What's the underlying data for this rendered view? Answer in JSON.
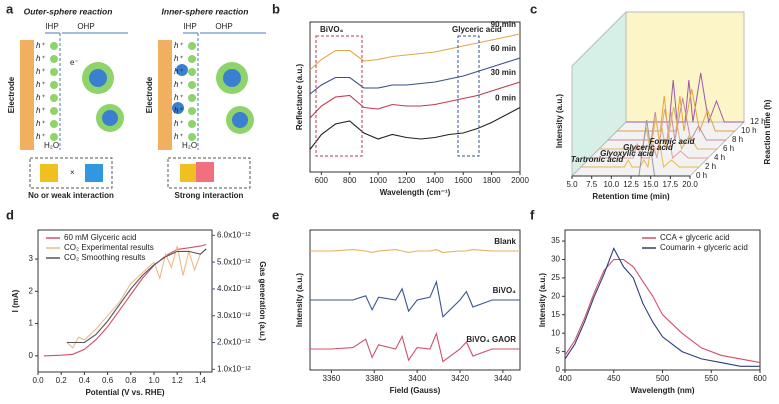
{
  "diagram": {
    "panel": "a",
    "hole": "h⁺",
    "outer": {
      "title": "Outer-sphere reaction",
      "electrode": "Electrode",
      "ihp": "IHP",
      "ohp": "OHP",
      "electron": "e⁻",
      "water": "H₂O",
      "caption": "No or weak interaction"
    },
    "inner": {
      "title": "Inner-sphere reaction",
      "electrode": "Electrode",
      "ihp": "IHP",
      "ohp": "OHP",
      "electron": "e⁻",
      "water": "H₂O",
      "caption": "Strong interaction"
    }
  },
  "chart_data": [
    {
      "panel": "b",
      "type": "line",
      "xlabel": "Wavelength (cm⁻¹)",
      "ylabel": "Reflectance (a.u.)",
      "xlim": [
        520,
        2000
      ],
      "xticks": [
        600,
        800,
        1000,
        1200,
        1400,
        1600,
        1800,
        2000
      ],
      "ylim": [
        0,
        10
      ],
      "legend": "inline",
      "annotations": [
        "BiVO₄",
        "Glyceric acid"
      ],
      "x": [
        520,
        600,
        700,
        800,
        900,
        1000,
        1100,
        1200,
        1300,
        1400,
        1500,
        1600,
        1700,
        1800,
        1900,
        2000
      ],
      "series": [
        {
          "name": "0 min",
          "color": "#222222",
          "values": [
            1.5,
            2.5,
            3.2,
            3.4,
            2.6,
            2.2,
            2.5,
            2.3,
            2.2,
            2.3,
            2.5,
            2.6,
            2.9,
            3.3,
            3.8,
            4.3
          ]
        },
        {
          "name": "30 min",
          "color": "#c0394a",
          "values": [
            3.6,
            4.4,
            5.0,
            5.1,
            4.3,
            4.2,
            4.5,
            4.4,
            4.4,
            4.5,
            4.7,
            4.9,
            5.1,
            5.4,
            5.7,
            6.0
          ]
        },
        {
          "name": "60 min",
          "color": "#3a4f8a",
          "values": [
            5.2,
            5.8,
            6.3,
            6.3,
            5.6,
            5.6,
            5.8,
            5.8,
            5.9,
            6.0,
            6.2,
            6.4,
            6.7,
            7.0,
            7.3,
            7.6
          ]
        },
        {
          "name": "90 min",
          "color": "#e0a84a",
          "values": [
            6.8,
            7.5,
            8.1,
            8.1,
            7.4,
            7.5,
            7.7,
            7.8,
            7.9,
            8.0,
            8.2,
            8.4,
            8.6,
            8.8,
            9.0,
            9.2
          ]
        }
      ]
    },
    {
      "panel": "c",
      "type": "line3d",
      "xlabel": "Retention time (min)",
      "ylabel": "Intensity (a.u.)",
      "zlabel": "Reaction time (h)",
      "xlim": [
        5,
        20
      ],
      "xticks": [
        {
          "value": 5,
          "label": "5.0"
        },
        7.5,
        {
          "value": 10,
          "label": "10.0"
        },
        12.5,
        {
          "value": 15,
          "label": "15.0"
        },
        17.5,
        {
          "value": 20,
          "label": "20.0"
        }
      ],
      "ylim": [
        0,
        10
      ],
      "annotations": [
        "Tartronic acid",
        "Glyoxylic acid",
        "Glyceric acid",
        "Formic acid"
      ],
      "x": [
        5,
        9,
        10.5,
        11,
        11.5,
        12.5,
        13,
        13.5,
        14.5,
        15.5,
        16.5,
        17.5,
        20
      ],
      "series": [
        {
          "name": "0 h",
          "color": "#999999",
          "values": [
            0,
            0,
            0,
            0,
            0,
            0,
            0,
            0,
            8,
            0,
            0,
            0,
            0
          ]
        },
        {
          "name": "2 h",
          "color": "#e8b94a",
          "values": [
            0,
            0,
            0,
            1,
            0,
            0,
            1,
            0,
            7,
            0,
            1,
            0,
            0
          ]
        },
        {
          "name": "4 h",
          "color": "#e0a0a0",
          "values": [
            0,
            0,
            0,
            2,
            0,
            0,
            2,
            0,
            7,
            0,
            1,
            0,
            0
          ]
        },
        {
          "name": "6 h",
          "color": "#d9b66a",
          "values": [
            0,
            0,
            0,
            3,
            0,
            0,
            3,
            0,
            6,
            0,
            2,
            0,
            0
          ]
        },
        {
          "name": "8 h",
          "color": "#c88aa0",
          "values": [
            0,
            0,
            0,
            4,
            0,
            0,
            4,
            0,
            6,
            0,
            2,
            0,
            0
          ]
        },
        {
          "name": "10 h",
          "color": "#e6a33c",
          "values": [
            0,
            0,
            0,
            5,
            0,
            0,
            5,
            0,
            6,
            0,
            3,
            0,
            0
          ]
        },
        {
          "name": "12 h",
          "color": "#9a5aa8",
          "values": [
            0,
            0,
            0,
            6,
            0,
            0,
            6,
            0,
            7,
            0,
            3,
            0,
            0
          ]
        }
      ]
    },
    {
      "panel": "d",
      "type": "line",
      "xlabel": "Potential (V vs. RHE)",
      "ylabel": "I (mA)",
      "y2label": "Gas generation (a.u.)",
      "xlim": [
        0,
        1.5
      ],
      "xticks": [
        {
          "value": 0,
          "label": "0.0"
        },
        0.2,
        0.4,
        0.6,
        0.8,
        {
          "value": 1,
          "label": "1.0"
        },
        1.2,
        1.4
      ],
      "ylim": [
        -0.5,
        3.9
      ],
      "yticks": [
        0,
        1,
        2,
        3
      ],
      "legend": "upper left",
      "y2lim": [
        9e-13,
        6.2e-12
      ],
      "y2ticks": [
        {
          "value": 1e-12,
          "label": "1.0x10⁻¹²"
        },
        {
          "value": 2e-12,
          "label": "2.0x10⁻¹²"
        },
        {
          "value": 3e-12,
          "label": "3.0x10⁻¹²"
        },
        {
          "value": 4e-12,
          "label": "4.0x10⁻¹²"
        },
        {
          "value": 5e-12,
          "label": "5.0x10⁻¹²"
        },
        {
          "value": 6e-12,
          "label": "6.0x10⁻¹²"
        }
      ],
      "series": [
        {
          "name": "60 mM  Glyceric acid",
          "color": "#d0506a",
          "x": [
            0.05,
            0.2,
            0.3,
            0.4,
            0.5,
            0.6,
            0.7,
            0.8,
            0.9,
            1.0,
            1.1,
            1.2,
            1.3,
            1.4,
            1.45
          ],
          "values": [
            0,
            0.02,
            0.05,
            0.2,
            0.5,
            0.9,
            1.4,
            1.9,
            2.4,
            2.8,
            3.1,
            3.3,
            3.35,
            3.4,
            3.45
          ]
        },
        {
          "name": "CO₂ Experimental results",
          "color": "#f0b88a",
          "axis": "y2",
          "x": [
            0.25,
            0.3,
            0.35,
            0.4,
            0.5,
            0.6,
            0.7,
            0.8,
            0.9,
            1.0,
            1.05,
            1.1,
            1.15,
            1.2,
            1.25,
            1.3,
            1.35,
            1.4,
            1.45
          ],
          "values": [
            2e-12,
            1.8e-12,
            2.2e-12,
            2.1e-12,
            2.5e-12,
            3e-12,
            3.5e-12,
            4.2e-12,
            4.6e-12,
            5e-12,
            4.4e-12,
            5.3e-12,
            4.8e-12,
            5.6e-12,
            4.5e-12,
            5.4e-12,
            4.7e-12,
            5.3e-12,
            5.5e-12
          ]
        },
        {
          "name": "CO₂ Smoothing results",
          "color": "#555555",
          "axis": "y2",
          "x": [
            0.25,
            0.4,
            0.5,
            0.6,
            0.7,
            0.8,
            0.9,
            1.0,
            1.1,
            1.2,
            1.3,
            1.4,
            1.45
          ],
          "values": [
            2e-12,
            2e-12,
            2.3e-12,
            2.8e-12,
            3.4e-12,
            4e-12,
            4.5e-12,
            4.9e-12,
            5.2e-12,
            5.4e-12,
            5.4e-12,
            5.3e-12,
            5.5e-12
          ]
        }
      ]
    },
    {
      "panel": "e",
      "type": "line",
      "xlabel": "Field (Gauss)",
      "ylabel": "Intensity (a.u.)",
      "xlim": [
        3350,
        3448
      ],
      "xticks": [
        3360,
        3380,
        3400,
        3420,
        3440
      ],
      "ylim": [
        0,
        10
      ],
      "legend": "inline",
      "x": [
        3350,
        3360,
        3370,
        3376,
        3379,
        3382,
        3390,
        3393,
        3396,
        3400,
        3406,
        3409,
        3412,
        3420,
        3423,
        3426,
        3435,
        3448
      ],
      "series": [
        {
          "name": "Blank",
          "color": "#e6b060",
          "values": [
            8.5,
            8.5,
            8.6,
            8.5,
            8.4,
            8.5,
            8.6,
            8.5,
            8.4,
            8.5,
            8.5,
            8.6,
            8.4,
            8.5,
            8.5,
            8.6,
            8.5,
            8.5
          ]
        },
        {
          "name": "BiVO₄",
          "color": "#3a5590",
          "values": [
            5,
            5,
            5,
            5.3,
            4.3,
            5.2,
            5,
            5.8,
            4.2,
            5,
            5.2,
            6.3,
            3.8,
            5,
            5.6,
            4.5,
            5,
            5
          ]
        },
        {
          "name": "BiVO₄ GAOR",
          "color": "#d0506a",
          "values": [
            1.5,
            1.5,
            1.6,
            2.2,
            0.9,
            1.8,
            1.5,
            2.4,
            0.7,
            1.6,
            1.5,
            2.6,
            0.6,
            1.5,
            2.0,
            1.0,
            1.5,
            1.5
          ]
        }
      ]
    },
    {
      "panel": "f",
      "type": "line",
      "xlabel": "Wavelength (nm)",
      "ylabel": "Intensity (a.u.)",
      "xlim": [
        400,
        600
      ],
      "xticks": [
        400,
        450,
        500,
        550,
        600
      ],
      "ylim": [
        0,
        38
      ],
      "yticks": [
        0,
        5,
        10,
        15,
        20,
        25,
        30,
        35
      ],
      "legend": "upper right",
      "x": [
        400,
        410,
        420,
        430,
        440,
        450,
        460,
        470,
        480,
        490,
        500,
        520,
        540,
        560,
        580,
        600
      ],
      "series": [
        {
          "name": "CCA + glyceric acid",
          "color": "#d0506a",
          "values": [
            4,
            8,
            14,
            21,
            27,
            30,
            30,
            28,
            24,
            20,
            15,
            10,
            6,
            4,
            3,
            2
          ]
        },
        {
          "name": "Coumarin + glyceric acid",
          "color": "#2e3f78",
          "values": [
            3,
            7,
            13,
            20,
            26,
            33,
            28,
            25,
            18,
            13,
            9,
            5,
            3,
            2,
            1,
            1
          ]
        }
      ]
    }
  ]
}
